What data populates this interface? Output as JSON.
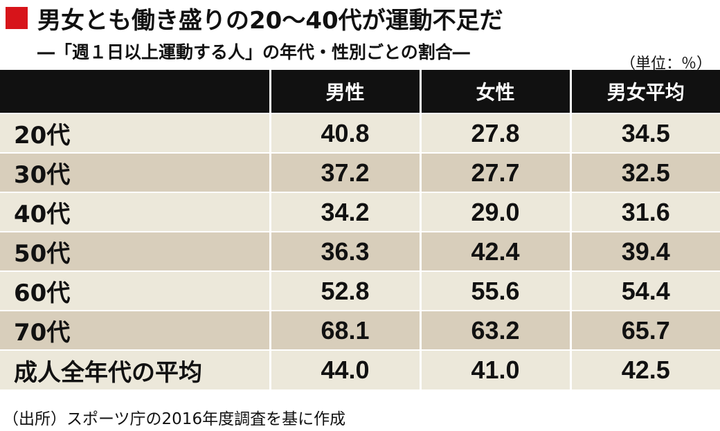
{
  "title": "男女とも働き盛りの20〜40代が運動不足だ",
  "subtitle": "―「週１日以上運動する人」の年代・性別ごとの割合―",
  "unit_label": "（単位：％）",
  "source": "（出所）スポーツ庁の2016年度調査を基に作成",
  "colors": {
    "accent": "#d7141a",
    "header_bg": "#111111",
    "row_light": "#ece8da",
    "row_dark": "#d8cebb"
  },
  "chart_data": {
    "type": "table",
    "columns": [
      "",
      "男性",
      "女性",
      "男女平均"
    ],
    "rows": [
      {
        "label": "20代",
        "values": [
          "40.8",
          "27.8",
          "34.5"
        ]
      },
      {
        "label": "30代",
        "values": [
          "37.2",
          "27.7",
          "32.5"
        ]
      },
      {
        "label": "40代",
        "values": [
          "34.2",
          "29.0",
          "31.6"
        ]
      },
      {
        "label": "50代",
        "values": [
          "36.3",
          "42.4",
          "39.4"
        ]
      },
      {
        "label": "60代",
        "values": [
          "52.8",
          "55.6",
          "54.4"
        ]
      },
      {
        "label": "70代",
        "values": [
          "68.1",
          "63.2",
          "65.7"
        ]
      },
      {
        "label": "成人全年代の平均",
        "values": [
          "44.0",
          "41.0",
          "42.5"
        ]
      }
    ]
  }
}
